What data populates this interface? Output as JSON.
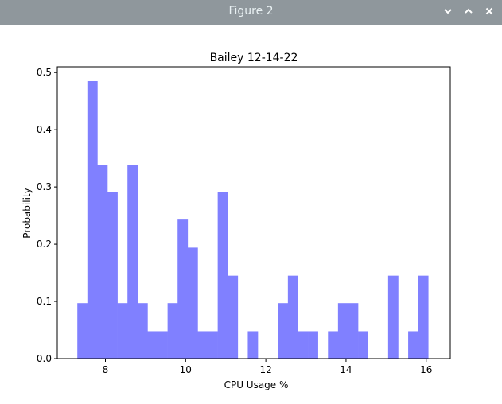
{
  "window": {
    "title": "Figure 2",
    "controls": [
      {
        "icon": "minimize-chevron-down-icon"
      },
      {
        "icon": "maximize-chevron-up-icon"
      },
      {
        "icon": "close-x-icon"
      }
    ],
    "titlebar_color": "#8f979c"
  },
  "chart_data": {
    "type": "bar",
    "title": "Bailey 12-14-22",
    "xlabel": "CPU Usage %",
    "ylabel": "Probability",
    "xlim": [
      6.8,
      16.6
    ],
    "ylim": [
      0,
      0.51
    ],
    "xticks": [
      8,
      10,
      12,
      14,
      16
    ],
    "xtick_labels": [
      "8",
      "10",
      "12",
      "14",
      "16"
    ],
    "yticks": [
      0.0,
      0.1,
      0.2,
      0.3,
      0.4,
      0.5
    ],
    "ytick_labels": [
      "0.0",
      "0.1",
      "0.2",
      "0.3",
      "0.4",
      "0.5"
    ],
    "grid": false,
    "bar_color": "#8080ff",
    "bin_start": 7.3,
    "bin_width": 0.25,
    "values": [
      0.097,
      0.485,
      0.339,
      0.291,
      0.097,
      0.339,
      0.097,
      0.048,
      0.048,
      0.097,
      0.243,
      0.194,
      0.048,
      0.048,
      0.291,
      0.145,
      0,
      0.048,
      0,
      0,
      0.097,
      0.145,
      0.048,
      0.048,
      0,
      0.048,
      0.097,
      0.097,
      0.048,
      0,
      0,
      0.145,
      0,
      0.048,
      0.145
    ]
  }
}
